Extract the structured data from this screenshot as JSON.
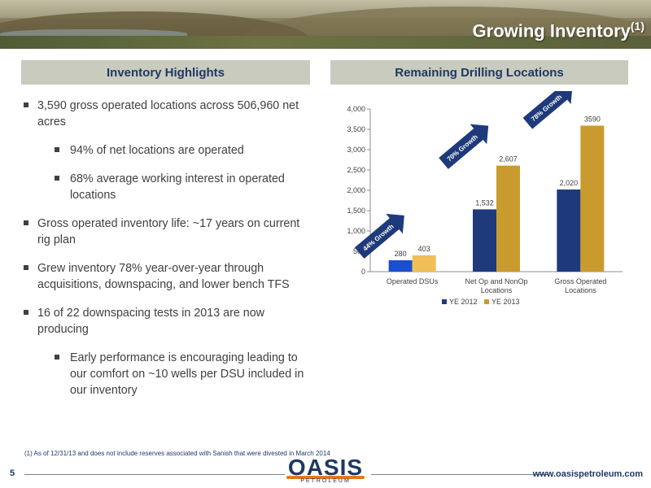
{
  "title": "Growing Inventory",
  "title_sup": "(1)",
  "left_header": "Inventory Highlights",
  "right_header": "Remaining Drilling Locations",
  "bullets": [
    {
      "text": "3,590 gross operated locations across 506,960 net acres",
      "level": 1
    },
    {
      "text": "94% of net locations are operated",
      "level": 2
    },
    {
      "text": "68% average working interest in operated locations",
      "level": 2
    },
    {
      "text": "Gross operated inventory life: ~17 years on current rig plan",
      "level": 1
    },
    {
      "text": "Grew inventory 78% year-over-year through acquisitions, downspacing, and lower bench TFS",
      "level": 1
    },
    {
      "text": "16 of 22 downspacing tests in 2013 are now producing",
      "level": 1
    },
    {
      "text": "Early performance is encouraging leading to our comfort on ~10 wells per DSU included in our inventory",
      "level": 2
    }
  ],
  "footnote": "(1) As of 12/31/13 and does not include reserves associated with Sanish that were divested in March 2014",
  "page_number": "5",
  "url": "www.oasispetroleum.com",
  "logo": {
    "word": "OASIS",
    "sub": "PETROLEUM"
  },
  "colors": {
    "ye2012": "#1f3a7a",
    "ye2013": "#c99b2e",
    "ye2012_highlight": "#1a4fd0",
    "ye2013_highlight": "#f2bf56",
    "arrow": "#1f3a7a",
    "header_bg": "#c9cbbe",
    "header_text": "#1f3864"
  },
  "chart_data": {
    "type": "bar",
    "categories": [
      "Operated DSUs",
      "Net Op and NonOp Locations",
      "Gross Operated Locations"
    ],
    "category_lines": [
      [
        "Operated DSUs"
      ],
      [
        "Net Op and NonOp",
        "Locations"
      ],
      [
        "Gross Operated",
        "Locations"
      ]
    ],
    "series": [
      {
        "name": "YE 2012",
        "values": [
          280,
          1532,
          2020
        ],
        "labels": [
          "280",
          "1,532",
          "2,020"
        ]
      },
      {
        "name": "YE 2013",
        "values": [
          403,
          2607,
          3590
        ],
        "labels": [
          "403",
          "2,607",
          "3590"
        ]
      }
    ],
    "ylim": [
      0,
      4000
    ],
    "yticks": [
      "0",
      "500",
      "1,000",
      "1,500",
      "2,000",
      "2,500",
      "3,000",
      "3,500",
      "4,000"
    ],
    "annotations": [
      "44% Growth",
      "70% Growth",
      "78% Growth"
    ],
    "legend": "bottom",
    "grid": false
  }
}
